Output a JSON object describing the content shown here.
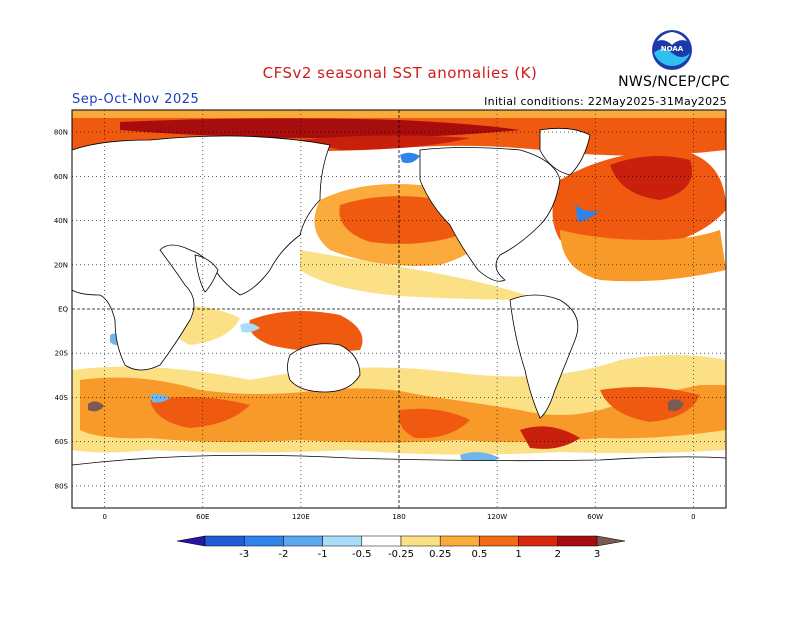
{
  "header": {
    "title": "CFSv2 seasonal SST anomalies (K)",
    "season": "Sep-Oct-Nov 2025",
    "initial_conditions": "Initial conditions: 22May2025-31May2025",
    "agency": "NWS/NCEP/CPC",
    "logo_text": "NOAA"
  },
  "map": {
    "lat_labels": [
      "80N",
      "60N",
      "40N",
      "20N",
      "EQ",
      "20S",
      "40S",
      "60S",
      "80S"
    ],
    "lon_labels": [
      "0",
      "60E",
      "120E",
      "180",
      "120W",
      "60W",
      "0"
    ],
    "lat_values": [
      80,
      60,
      40,
      20,
      0,
      -20,
      -40,
      -60,
      -80
    ],
    "lon_values": [
      0,
      60,
      120,
      180,
      240,
      300,
      360
    ],
    "lat_range": [
      -90,
      90
    ],
    "lon_range": [
      -20,
      380
    ],
    "grid": "dotted"
  },
  "colorbar": {
    "labels": [
      "-3",
      "-2",
      "-1",
      "-0.5",
      "-0.25",
      "0.25",
      "0.5",
      "1",
      "2",
      "3"
    ],
    "colors": [
      "#2a14a8",
      "#1f5cd6",
      "#2f84ea",
      "#5aa8f0",
      "#a9dcf8",
      "#ffffff",
      "#fce086",
      "#fbaa3c",
      "#f26a11",
      "#d8290d",
      "#a80d0d",
      "#7a5a52"
    ]
  },
  "anomaly_colors": {
    "weak_warm": "#fce086",
    "warm": "#f89a2a",
    "strong_warm": "#ef5a10",
    "very_warm": "#c8200c",
    "extreme_warm": "#a80d0d",
    "cold": "#6fb6ef",
    "strong_cold": "#2f84ea"
  }
}
